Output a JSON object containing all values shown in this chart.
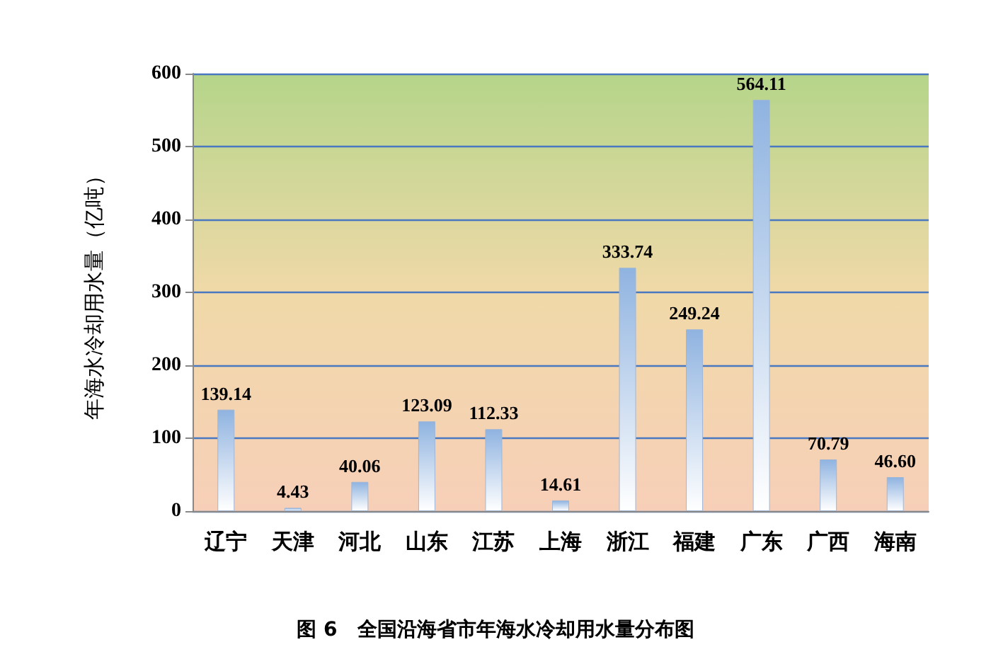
{
  "chart_data": {
    "type": "bar",
    "title": "图 6　全国沿海省市年海水冷却用水量分布图",
    "ylabel": "年海水冷却用水量（亿吨）",
    "categories": [
      "辽宁",
      "天津",
      "河北",
      "山东",
      "江苏",
      "上海",
      "浙江",
      "福建",
      "广东",
      "广西",
      "海南"
    ],
    "values": [
      139.14,
      4.43,
      40.06,
      123.09,
      112.33,
      14.61,
      333.74,
      249.24,
      564.11,
      70.79,
      46.6
    ],
    "value_labels": [
      "139.14",
      "4.43",
      "40.06",
      "123.09",
      "112.33",
      "14.61",
      "333.74",
      "249.24",
      "564.11",
      "70.79",
      "46.60"
    ],
    "color": "#8fb3e0",
    "ylim": [
      0,
      600
    ],
    "yticks": [
      0,
      100,
      200,
      300,
      400,
      500,
      600
    ],
    "grid": "y"
  }
}
